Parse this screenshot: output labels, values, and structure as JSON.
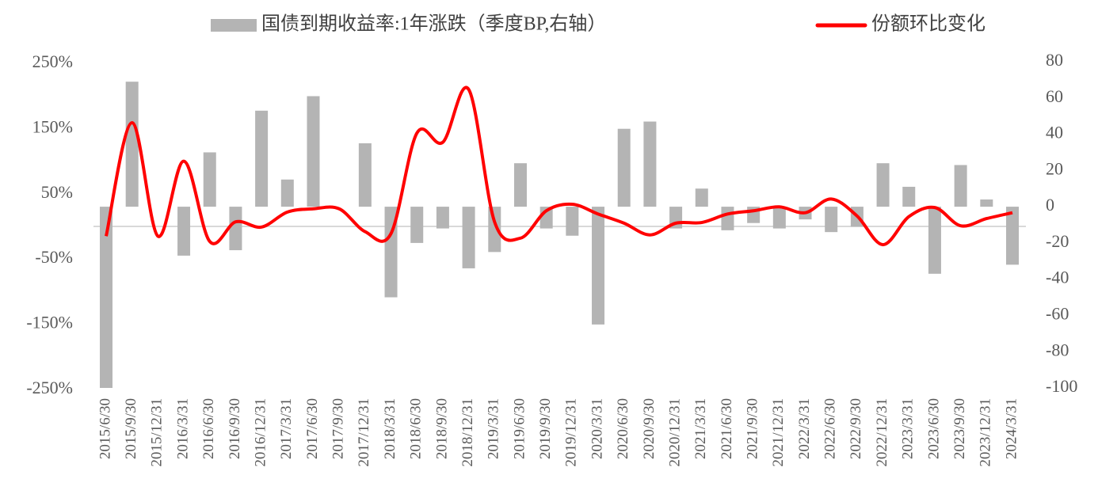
{
  "chart_data": {
    "type": "combo",
    "categories": [
      "2015/6/30",
      "2015/9/30",
      "2015/12/31",
      "2016/3/31",
      "2016/6/30",
      "2016/9/30",
      "2016/12/31",
      "2017/3/31",
      "2017/6/30",
      "2017/9/30",
      "2017/12/31",
      "2018/3/31",
      "2018/6/30",
      "2018/9/30",
      "2018/12/31",
      "2019/3/31",
      "2019/6/30",
      "2019/9/30",
      "2019/12/31",
      "2020/3/31",
      "2020/6/30",
      "2020/9/30",
      "2020/12/31",
      "2021/3/31",
      "2021/6/30",
      "2021/9/30",
      "2021/12/31",
      "2022/3/31",
      "2022/6/30",
      "2022/9/30",
      "2022/12/31",
      "2023/3/31",
      "2023/6/30",
      "2023/9/30",
      "2023/12/31",
      "2024/3/31"
    ],
    "series": [
      {
        "name": "国债到期收益率:1年涨跌（季度BP,右轴）",
        "type": "bar",
        "axis": "y2",
        "color": "#b4b4b4",
        "values": [
          -100,
          69,
          0,
          -27,
          30,
          -24,
          53,
          15,
          61,
          0,
          35,
          -50,
          -20,
          -12,
          -34,
          -25,
          24,
          -12,
          -16,
          -65,
          43,
          47,
          -12,
          10,
          -13,
          -9,
          -12,
          -7,
          -14,
          -11,
          24,
          11,
          -37,
          23,
          4,
          -32
        ]
      },
      {
        "name": "份额环比变化",
        "type": "line",
        "color": "#ff0000",
        "values": [
          -15,
          159,
          -15,
          100,
          -23,
          7,
          -1,
          22,
          27,
          27,
          -8,
          -11,
          143,
          129,
          210,
          7,
          -18,
          24,
          34,
          19,
          5,
          -13,
          5,
          6,
          19,
          24,
          30,
          21,
          42,
          16,
          -28,
          15,
          29,
          1,
          12,
          21
        ]
      }
    ],
    "ylim": [
      -250,
      250
    ],
    "yticks": [
      {
        "value": 250,
        "label": "250%"
      },
      {
        "value": 150,
        "label": "150%"
      },
      {
        "value": 50,
        "label": "50%"
      },
      {
        "value": -50,
        "label": "-50%"
      },
      {
        "value": -150,
        "label": "-150%"
      },
      {
        "value": -250,
        "label": "-250%"
      }
    ],
    "y2lim": [
      -100,
      80
    ],
    "y2ticks": [
      80,
      60,
      40,
      20,
      0,
      -20,
      -40,
      -60,
      -80,
      -100
    ],
    "legend": "top"
  }
}
